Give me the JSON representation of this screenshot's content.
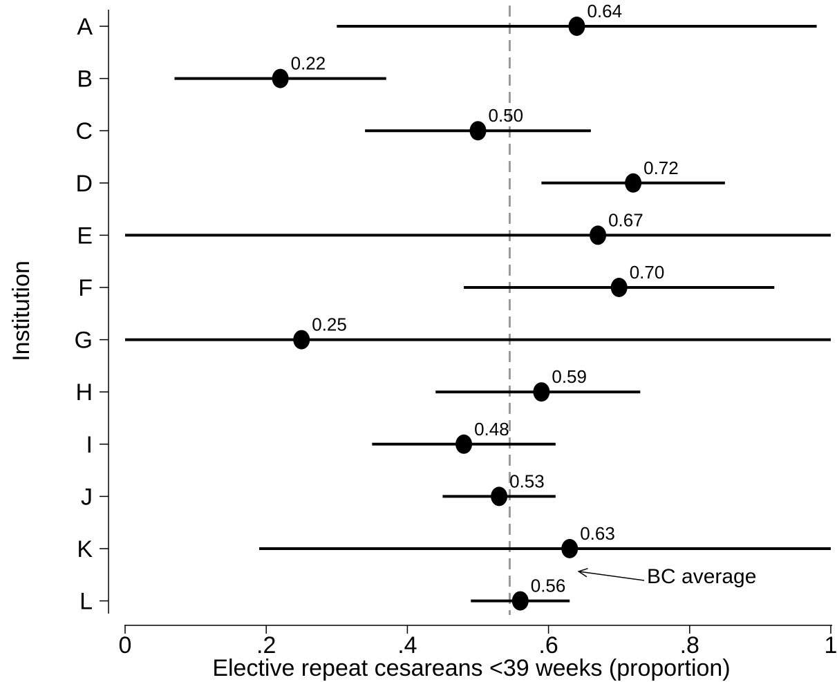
{
  "chart_data": {
    "type": "scatter",
    "subtype": "forest-plot",
    "xlabel": "Elective repeat cesareans <39 weeks (proportion)",
    "ylabel": "Institution",
    "xlim": [
      0,
      1
    ],
    "x_ticks": [
      {
        "value": 0,
        "label": "0"
      },
      {
        "value": 0.2,
        "label": ".2"
      },
      {
        "value": 0.4,
        "label": ".4"
      },
      {
        "value": 0.6,
        "label": ".6"
      },
      {
        "value": 0.8,
        "label": ".8"
      },
      {
        "value": 1,
        "label": "1"
      }
    ],
    "categories": [
      "A",
      "B",
      "C",
      "D",
      "E",
      "F",
      "G",
      "H",
      "I",
      "J",
      "K",
      "L"
    ],
    "points": [
      {
        "category": "A",
        "value": 0.64,
        "label": "0.64",
        "ci_low": 0.3,
        "ci_high": 0.98
      },
      {
        "category": "B",
        "value": 0.22,
        "label": "0.22",
        "ci_low": 0.07,
        "ci_high": 0.37
      },
      {
        "category": "C",
        "value": 0.5,
        "label": "0.50",
        "ci_low": 0.34,
        "ci_high": 0.66
      },
      {
        "category": "D",
        "value": 0.72,
        "label": "0.72",
        "ci_low": 0.59,
        "ci_high": 0.85
      },
      {
        "category": "E",
        "value": 0.67,
        "label": "0.67",
        "ci_low": 0.0,
        "ci_high": 1.0
      },
      {
        "category": "F",
        "value": 0.7,
        "label": "0.70",
        "ci_low": 0.48,
        "ci_high": 0.92
      },
      {
        "category": "G",
        "value": 0.25,
        "label": "0.25",
        "ci_low": 0.0,
        "ci_high": 1.0
      },
      {
        "category": "H",
        "value": 0.59,
        "label": "0.59",
        "ci_low": 0.44,
        "ci_high": 0.73
      },
      {
        "category": "I",
        "value": 0.48,
        "label": "0.48",
        "ci_low": 0.35,
        "ci_high": 0.61
      },
      {
        "category": "J",
        "value": 0.53,
        "label": "0.53",
        "ci_low": 0.45,
        "ci_high": 0.61
      },
      {
        "category": "K",
        "value": 0.63,
        "label": "0.63",
        "ci_low": 0.19,
        "ci_high": 1.0
      },
      {
        "category": "L",
        "value": 0.56,
        "label": "0.56",
        "ci_low": 0.49,
        "ci_high": 0.63
      }
    ],
    "reference_line": {
      "value": 0.545,
      "style": "dashed",
      "color": "#999999"
    },
    "annotation": {
      "text": "BC average",
      "points_to": "reference_line"
    },
    "grid": false,
    "legend": "none",
    "colors": {
      "marker": "#000000",
      "ci": "#000000",
      "reference": "#999999"
    }
  }
}
